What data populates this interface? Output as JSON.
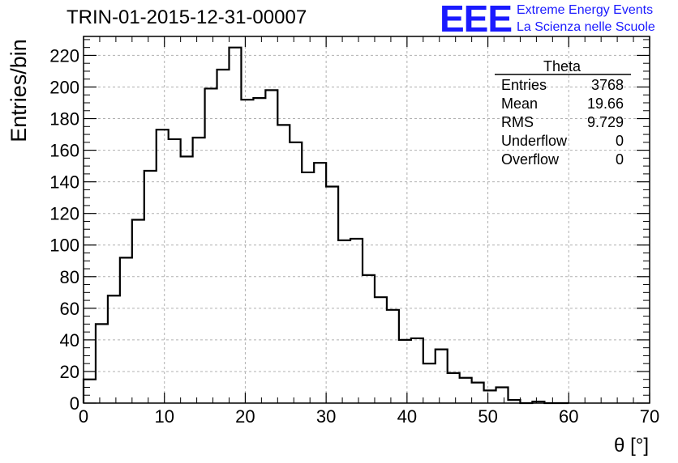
{
  "header": {
    "title": "TRIN-01-2015-12-31-00007",
    "logo_text": "EEE",
    "logo_line1": "Extreme Energy Events",
    "logo_line2": "La Scienza nelle Scuole"
  },
  "stats": {
    "name": "Theta",
    "rows": [
      {
        "label": "Entries",
        "value": "3768"
      },
      {
        "label": "Mean",
        "value": "19.66"
      },
      {
        "label": "RMS",
        "value": "9.729"
      },
      {
        "label": "Underflow",
        "value": "0"
      },
      {
        "label": "Overflow",
        "value": "0"
      }
    ]
  },
  "colors": {
    "line": "#000000",
    "grid": "#b0b0b0",
    "logo": "#1a1aff"
  },
  "chart_data": {
    "type": "histogram",
    "title": "TRIN-01-2015-12-31-00007",
    "xlabel": "θ [°]",
    "ylabel": "Entries/bin",
    "xlim": [
      0,
      70
    ],
    "ylim": [
      0,
      232
    ],
    "xticks": [
      0,
      10,
      20,
      30,
      40,
      50,
      60,
      70
    ],
    "yticks": [
      0,
      20,
      40,
      60,
      80,
      100,
      120,
      140,
      160,
      180,
      200,
      220
    ],
    "grid": true,
    "bin_width": 1.5,
    "bin_start": 0,
    "values": [
      15,
      50,
      68,
      92,
      116,
      147,
      173,
      167,
      156,
      168,
      199,
      211,
      225,
      192,
      193,
      198,
      176,
      165,
      146,
      152,
      137,
      103,
      104,
      81,
      67,
      59,
      40,
      41,
      25,
      34,
      19,
      16,
      13,
      8,
      10,
      2,
      0,
      1,
      0,
      0
    ]
  }
}
